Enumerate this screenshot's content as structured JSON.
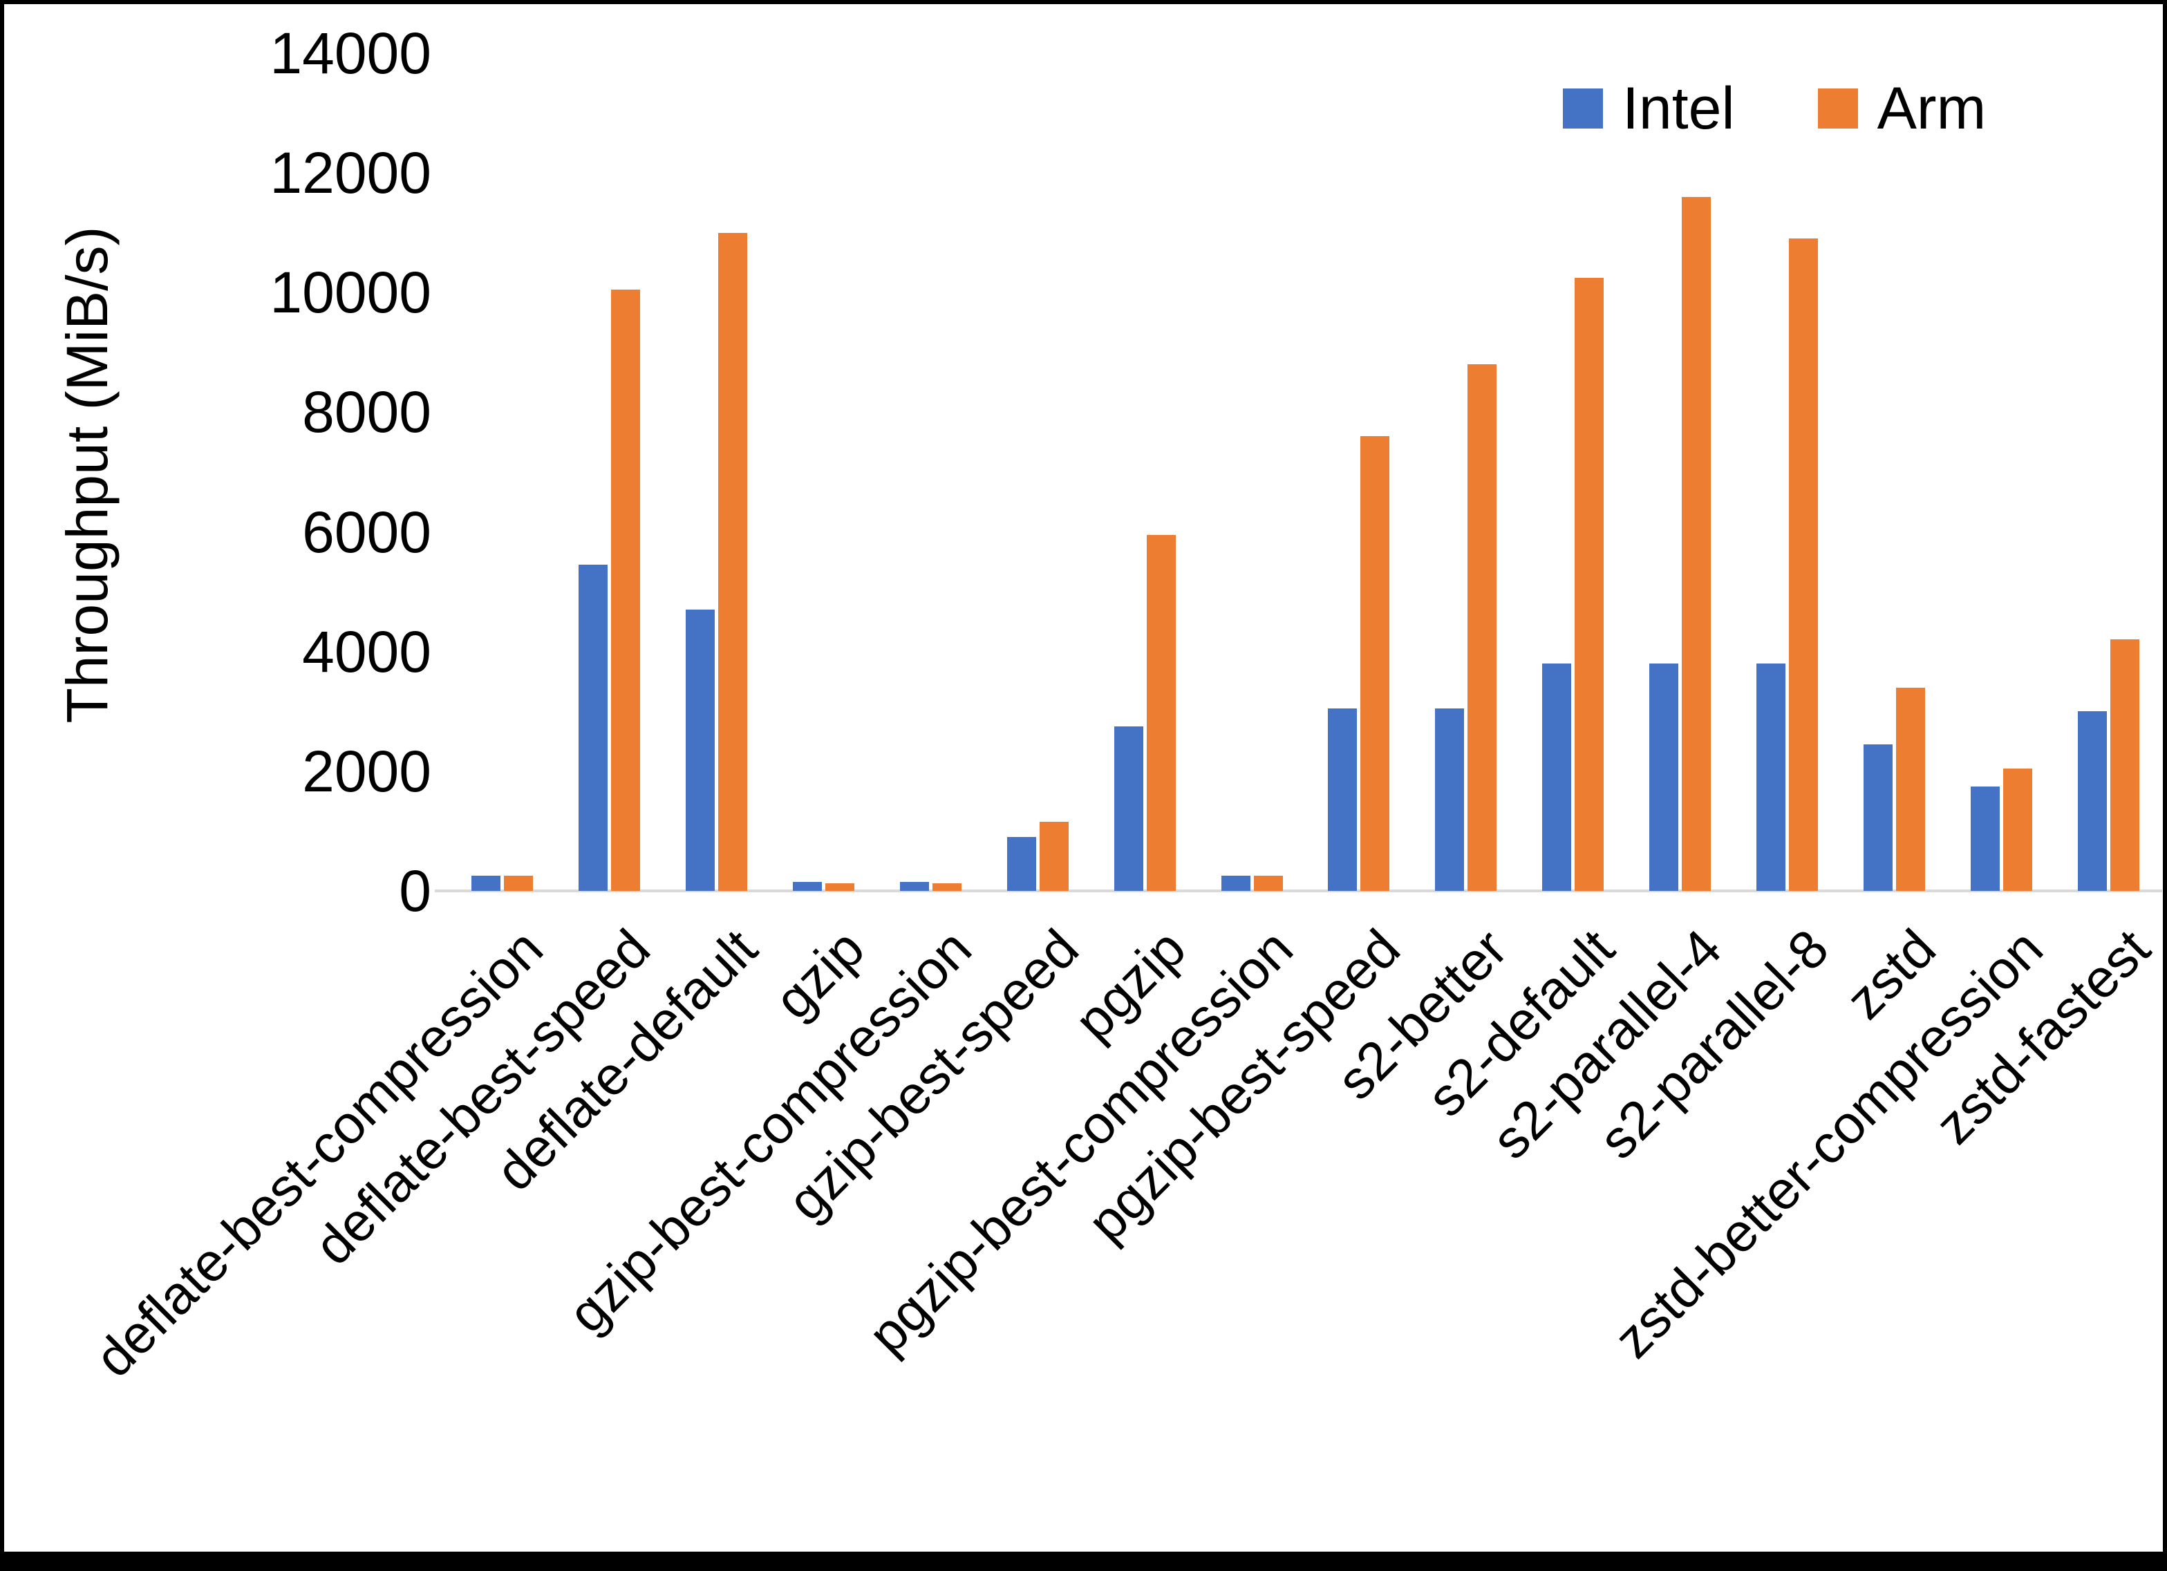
{
  "figure": {
    "background": "#ffffff",
    "frame_color": "#000000",
    "axis_line_color": "#d9d9d9",
    "text_color": "#000000"
  },
  "chart_data": {
    "type": "bar",
    "title": "",
    "xlabel": "",
    "ylabel": "Throughput (MiB/s)",
    "ylim": [
      0,
      14000
    ],
    "yticks": [
      0,
      2000,
      4000,
      6000,
      8000,
      10000,
      12000,
      14000
    ],
    "grid": false,
    "legend_position": "top-right",
    "categories": [
      "deflate-best-compression",
      "deflate-best-speed",
      "deflate-default",
      "gzip",
      "gzip-best-compression",
      "gzip-best-speed",
      "pgzip",
      "pgzip-best-compression",
      "pgzip-best-speed",
      "s2-better",
      "s2-default",
      "s2-parallel-4",
      "s2-parallel-8",
      "zstd",
      "zstd-better-compression",
      "zstd-fastest"
    ],
    "series": [
      {
        "name": "Intel",
        "color": "#4472C4",
        "values": [
          250,
          5450,
          4700,
          150,
          150,
          900,
          2750,
          250,
          3050,
          3050,
          3800,
          3800,
          3800,
          2450,
          1750,
          3000
        ]
      },
      {
        "name": "Arm",
        "color": "#ED7D31",
        "values": [
          250,
          10050,
          11000,
          130,
          130,
          1150,
          5950,
          250,
          7600,
          8800,
          10250,
          11600,
          10900,
          3400,
          2050,
          4200
        ]
      }
    ]
  }
}
